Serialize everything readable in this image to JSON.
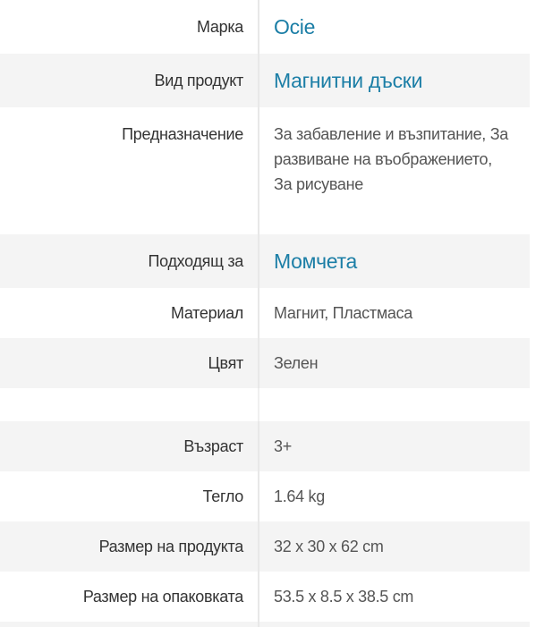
{
  "specs_group1": [
    {
      "label": "Марка",
      "value": "Ocie",
      "link": true
    },
    {
      "label": "Вид продукт",
      "value": "Магнитни дъски",
      "link": true
    },
    {
      "label": "Предназначение",
      "value": "За забавление и възпитание, За развиване на въображението, За рисуване",
      "link": false
    },
    {
      "label": "Подходящ за",
      "value": "Момчета",
      "link": true
    },
    {
      "label": "Материал",
      "value": "Магнит, Пластмаса",
      "link": false
    },
    {
      "label": "Цвят",
      "value": "Зелен",
      "link": false
    }
  ],
  "specs_group2": [
    {
      "label": "Възраст",
      "value": "3+"
    },
    {
      "label": "Тегло",
      "value": "1.64 kg"
    },
    {
      "label": "Размер на продукта",
      "value": "32 x 30 x 62 cm"
    },
    {
      "label": "Размер на опаковката",
      "value": "53.5 x 8.5 x 38.5 cm"
    }
  ],
  "colors": {
    "link": "#1b7ea6",
    "label": "#333333",
    "value": "#555555",
    "alt_row": "#f4f4f4"
  }
}
